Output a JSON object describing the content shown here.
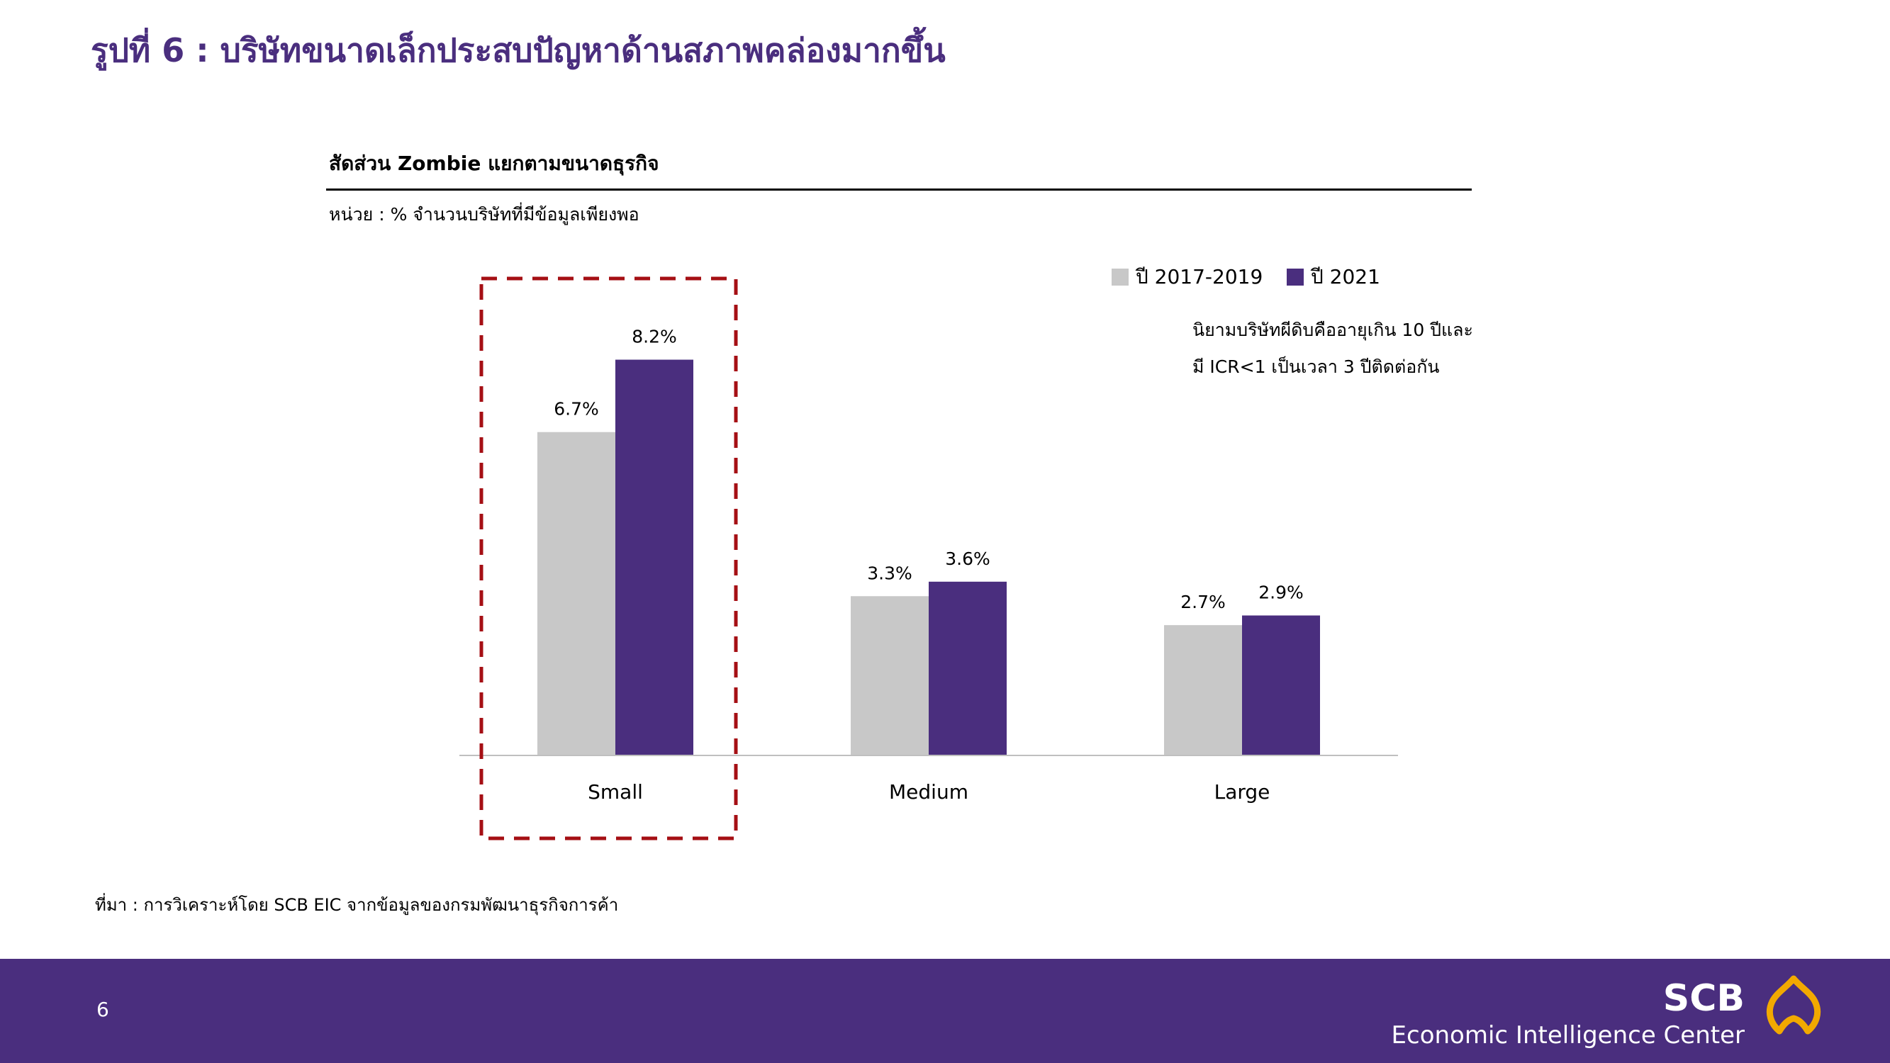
{
  "slide": {
    "title": "รูปที่ 6 : บริษัทขนาดเล็กประสบปัญหาด้านสภาพคล่องมากขึ้น"
  },
  "chart_header": {
    "title": "สัดส่วน Zombie แยกตามขนาดธุรกิจ",
    "unit": "หน่วย : % จำนวนบริษัทที่มีข้อมูลเพียงพอ"
  },
  "definition_note": {
    "line1": "นิยามบริษัทผีดิบคืออายุเกิน 10 ปีและ",
    "line2": "มี ICR<1 เป็นเวลา 3 ปีติดต่อกัน"
  },
  "source_note": "ที่มา : การวิเคราะห์โดย SCB EIC จากข้อมูลของกรมพัฒนาธุรกิจการค้า",
  "footer": {
    "page_number": "6",
    "brand_name": "SCB",
    "brand_subtitle": "Economic Intelligence Center",
    "logo_icon": "scb-emblem-icon"
  },
  "colors": {
    "brand_purple": "#4A2E7E",
    "series_2017_2019": "#C8C8C8",
    "series_2021": "#4A2E7E",
    "highlight_box": "#A50F14",
    "logo_gold": "#F2A900"
  },
  "chart_data": {
    "type": "bar",
    "title": "สัดส่วน Zombie แยกตามขนาดธุรกิจ",
    "xlabel": "",
    "ylabel": "",
    "categories": [
      "Small",
      "Medium",
      "Large"
    ],
    "series": [
      {
        "name": "ปี 2017-2019",
        "values": [
          6.7,
          3.3,
          2.7
        ],
        "labels": [
          "6.7%",
          "3.3%",
          "2.7%"
        ],
        "color": "#C8C8C8"
      },
      {
        "name": "ปี 2021",
        "values": [
          8.2,
          3.6,
          2.9
        ],
        "labels": [
          "8.2%",
          "3.6%",
          "2.9%"
        ],
        "color": "#4A2E7E"
      }
    ],
    "ylim": [
      0,
      9.5
    ],
    "grid": false,
    "legend_position": "top-right",
    "highlighted_category": "Small"
  }
}
